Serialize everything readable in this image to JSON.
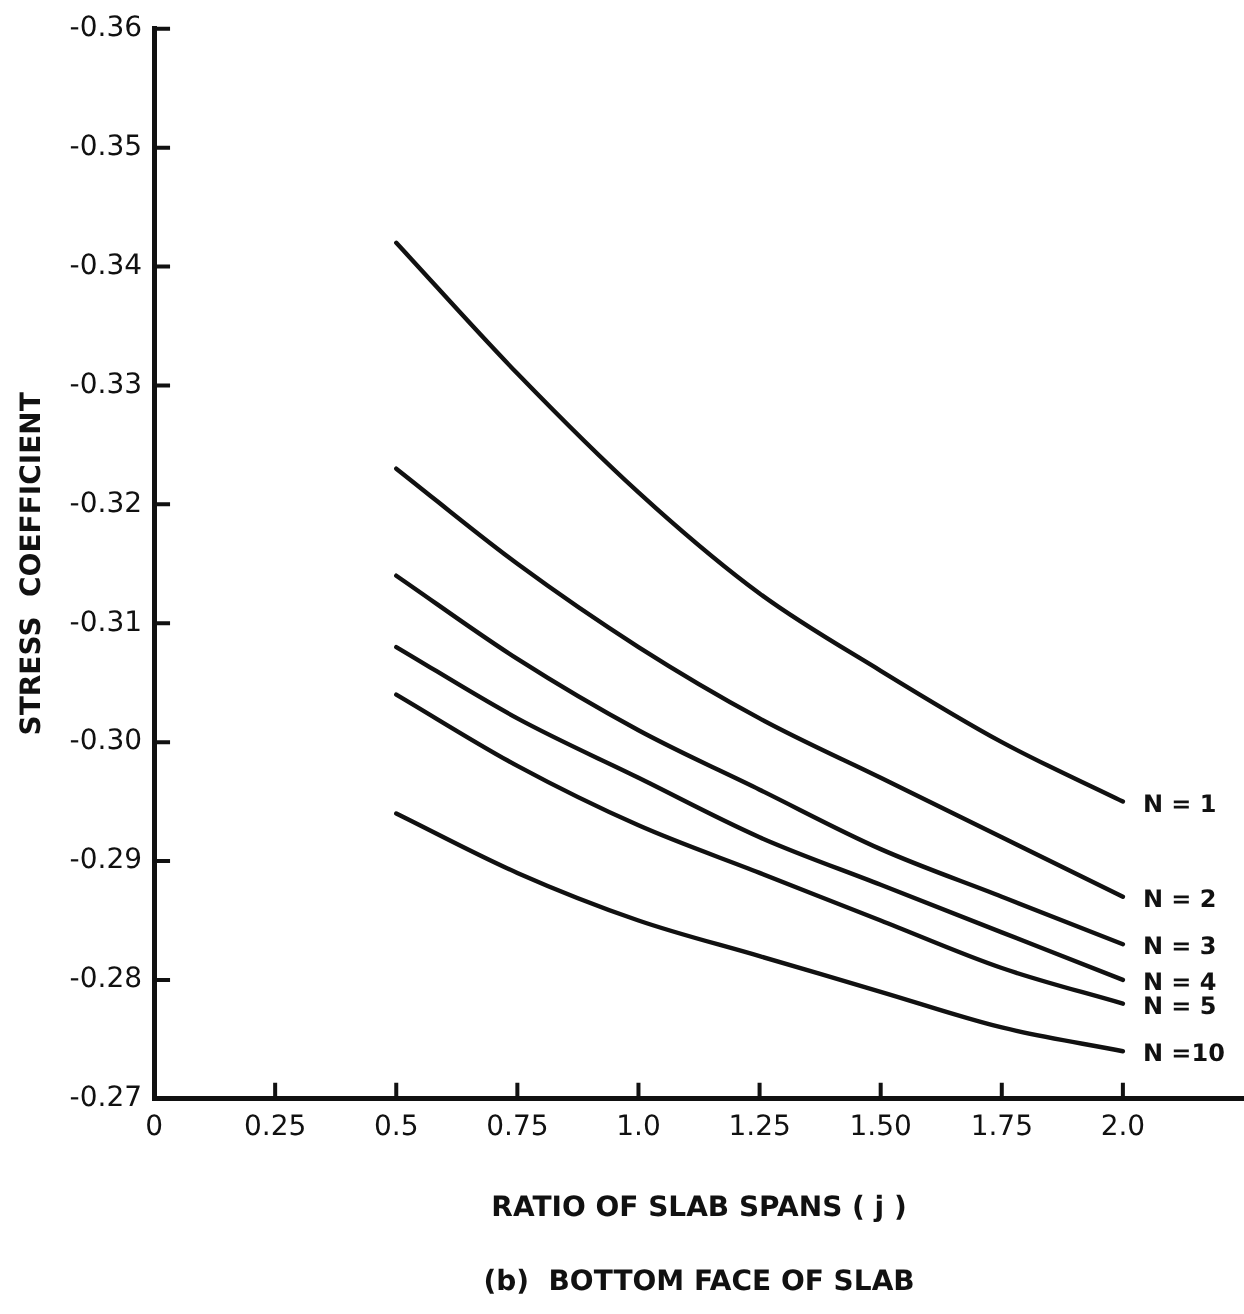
{
  "chart_data": {
    "type": "line",
    "xlabel": "RATIO OF SLAB SPANS ( j )",
    "ylabel": "STRESS  COEFFICIENT",
    "annotations": [
      "(b)  BOTTOM FACE OF SLAB"
    ],
    "x": [
      0.5,
      0.75,
      1.0,
      1.25,
      1.5,
      1.75,
      2.0
    ],
    "series": [
      {
        "name": "N = 1",
        "color": "#111111",
        "values": [
          -0.342,
          -0.331,
          -0.321,
          -0.3125,
          -0.306,
          -0.3,
          -0.295
        ]
      },
      {
        "name": "N = 2",
        "color": "#111111",
        "values": [
          -0.323,
          -0.315,
          -0.308,
          -0.302,
          -0.297,
          -0.292,
          -0.287
        ]
      },
      {
        "name": "N = 3",
        "color": "#111111",
        "values": [
          -0.314,
          -0.307,
          -0.301,
          -0.296,
          -0.291,
          -0.287,
          -0.283
        ]
      },
      {
        "name": "N = 4",
        "color": "#111111",
        "values": [
          -0.308,
          -0.302,
          -0.297,
          -0.292,
          -0.288,
          -0.284,
          -0.28
        ]
      },
      {
        "name": "N = 5",
        "color": "#111111",
        "values": [
          -0.304,
          -0.298,
          -0.293,
          -0.289,
          -0.285,
          -0.281,
          -0.278
        ]
      },
      {
        "name": "N =10",
        "color": "#111111",
        "values": [
          -0.294,
          -0.289,
          -0.285,
          -0.282,
          -0.279,
          -0.276,
          -0.274
        ]
      }
    ],
    "xlim": [
      0,
      2.25
    ],
    "xticks": [
      0,
      0.25,
      0.5,
      0.75,
      {
        "value": 1.0,
        "label": "1.0"
      },
      1.25,
      {
        "value": 1.5,
        "label": "1.50"
      },
      1.75,
      {
        "value": 2.0,
        "label": "2.0"
      }
    ],
    "ylim": [
      -0.27,
      -0.36
    ],
    "yticks": [
      {
        "value": -0.27,
        "label": "-0.27"
      },
      {
        "value": -0.28,
        "label": "-0.28"
      },
      {
        "value": -0.29,
        "label": "-0.29"
      },
      {
        "value": -0.3,
        "label": "-0.30"
      },
      {
        "value": -0.31,
        "label": "-0.31"
      },
      {
        "value": -0.32,
        "label": "-0.32"
      },
      {
        "value": -0.33,
        "label": "-0.33"
      },
      {
        "value": -0.34,
        "label": "-0.34"
      },
      {
        "value": -0.35,
        "label": "-0.35"
      },
      {
        "value": -0.36,
        "label": "-0.36"
      }
    ],
    "grid": false,
    "legend": false,
    "marker": "none",
    "line_style": "solid"
  }
}
